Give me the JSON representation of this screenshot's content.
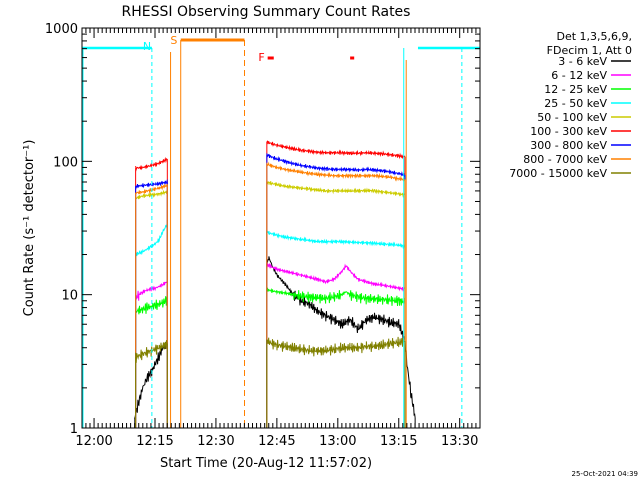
{
  "chart_data": {
    "type": "line",
    "title": "RHESSI Observing Summary Count Rates",
    "xlabel": "Start Time (20-Aug-12 11:57:02)",
    "ylabel": "Count Rate (s⁻¹ detector⁻¹)",
    "y_scale": "log",
    "ylim": [
      1,
      1000
    ],
    "xlim": [
      "11:57:02",
      "13:35"
    ],
    "x_ticks": [
      "12:00",
      "12:15",
      "12:30",
      "12:45",
      "13:00",
      "13:15",
      "13:30"
    ],
    "y_ticks": [
      "1",
      "10",
      "100",
      "1000"
    ],
    "legend_header": [
      "Det 1,3,5,6,9,",
      "FDecim 1, Att 0"
    ],
    "legend_position": "top-right",
    "footer_date": "25-Oct-2021 04:39",
    "flags": {
      "N": {
        "label": "N",
        "color": "#00ffff"
      },
      "S": {
        "label": "S",
        "color": "#ff8000"
      },
      "F": {
        "label": "F",
        "color": "#ff0000"
      }
    },
    "series": [
      {
        "name": "3 - 6 keV",
        "color": "#000000",
        "segments": [
          [
            [
              13.0,
              1.2
            ],
            [
              14,
              1.6
            ],
            [
              15,
              2.0
            ],
            [
              16,
              2.4
            ],
            [
              17,
              2.6
            ],
            [
              18,
              3.0
            ],
            [
              19,
              3.5
            ],
            [
              20,
              4.0
            ],
            [
              21,
              4.3
            ]
          ],
          [
            [
              45.5,
              17
            ],
            [
              46,
              19
            ],
            [
              47,
              16
            ],
            [
              48,
              14
            ],
            [
              50,
              12
            ],
            [
              52,
              10
            ],
            [
              54,
              9
            ],
            [
              56,
              8.5
            ],
            [
              58,
              7.5
            ],
            [
              60,
              7
            ],
            [
              62,
              6.5
            ],
            [
              64,
              6
            ],
            [
              66,
              6.5
            ],
            [
              68,
              5.5
            ],
            [
              70,
              6.5
            ],
            [
              72,
              6.8
            ],
            [
              74,
              6.5
            ],
            [
              76,
              6.2
            ],
            [
              78,
              6
            ],
            [
              79.5,
              4.5
            ],
            [
              80,
              3
            ],
            [
              81,
              1.8
            ],
            [
              82,
              1.2
            ]
          ]
        ]
      },
      {
        "name": "6 - 12 keV",
        "color": "#ff00ff",
        "segments": [
          [
            [
              13.2,
              9.5
            ],
            [
              14,
              10
            ],
            [
              15,
              10.5
            ],
            [
              16,
              10.8
            ],
            [
              17,
              11
            ],
            [
              18,
              11.2
            ],
            [
              19,
              11.5
            ],
            [
              20,
              12
            ],
            [
              21,
              12.5
            ]
          ],
          [
            [
              45.5,
              17
            ],
            [
              46,
              16.5
            ],
            [
              48,
              15.5
            ],
            [
              50,
              15
            ],
            [
              52,
              14.5
            ],
            [
              54,
              14
            ],
            [
              56,
              13.5
            ],
            [
              58,
              13
            ],
            [
              60,
              12.5
            ],
            [
              62,
              13
            ],
            [
              64,
              15
            ],
            [
              65,
              16.5
            ],
            [
              66,
              15
            ],
            [
              68,
              13
            ],
            [
              70,
              12.5
            ],
            [
              72,
              12
            ],
            [
              74,
              11.8
            ],
            [
              76,
              11.5
            ],
            [
              78,
              11.2
            ],
            [
              79.5,
              11
            ]
          ]
        ]
      },
      {
        "name": "12 - 25 keV",
        "color": "#00ff00",
        "segments": [
          [
            [
              13.2,
              7.5
            ],
            [
              14,
              7.6
            ],
            [
              15,
              7.8
            ],
            [
              16,
              8
            ],
            [
              17,
              8.2
            ],
            [
              18,
              8.3
            ],
            [
              19,
              8.5
            ],
            [
              20,
              8.8
            ],
            [
              21,
              9.2
            ]
          ],
          [
            [
              45.5,
              11
            ],
            [
              46,
              10.8
            ],
            [
              48,
              10.5
            ],
            [
              50,
              10.3
            ],
            [
              52,
              10
            ],
            [
              54,
              9.8
            ],
            [
              56,
              9.6
            ],
            [
              58,
              9.5
            ],
            [
              60,
              9.4
            ],
            [
              62,
              9.6
            ],
            [
              64,
              10
            ],
            [
              65,
              10.5
            ],
            [
              66,
              10
            ],
            [
              68,
              9.6
            ],
            [
              70,
              9.4
            ],
            [
              72,
              9.3
            ],
            [
              74,
              9.2
            ],
            [
              76,
              9.1
            ],
            [
              78,
              9
            ],
            [
              79.5,
              8.8
            ]
          ]
        ]
      },
      {
        "name": "25 - 50 keV",
        "color": "#00ffff",
        "segments": [
          [
            [
              13.2,
              20
            ],
            [
              14,
              20.5
            ],
            [
              15,
              21
            ],
            [
              16,
              22
            ],
            [
              17,
              23
            ],
            [
              18,
              24
            ],
            [
              19,
              26
            ],
            [
              20,
              30
            ],
            [
              21,
              34
            ]
          ],
          [
            [
              45.5,
              30
            ],
            [
              46,
              29
            ],
            [
              48,
              28
            ],
            [
              50,
              27
            ],
            [
              52,
              26.5
            ],
            [
              54,
              26
            ],
            [
              56,
              25.5
            ],
            [
              58,
              25
            ],
            [
              60,
              25
            ],
            [
              62,
              25
            ],
            [
              64,
              25
            ],
            [
              66,
              24.8
            ],
            [
              68,
              24.6
            ],
            [
              70,
              24.5
            ],
            [
              72,
              24.3
            ],
            [
              74,
              24
            ],
            [
              76,
              23.8
            ],
            [
              78,
              23.5
            ],
            [
              79.5,
              23
            ]
          ]
        ]
      },
      {
        "name": "50 - 100 keV",
        "color": "#cccc00",
        "segments": [
          [
            [
              13.2,
              53
            ],
            [
              15,
              55
            ],
            [
              17,
              56
            ],
            [
              19,
              57
            ],
            [
              21,
              59
            ]
          ],
          [
            [
              45.5,
              70
            ],
            [
              46,
              69
            ],
            [
              48,
              67
            ],
            [
              50,
              65
            ],
            [
              52,
              64
            ],
            [
              54,
              63
            ],
            [
              56,
              62
            ],
            [
              58,
              61
            ],
            [
              60,
              60
            ],
            [
              62,
              60
            ],
            [
              64,
              60
            ],
            [
              66,
              60
            ],
            [
              68,
              60
            ],
            [
              70,
              60.5
            ],
            [
              72,
              60
            ],
            [
              74,
              59
            ],
            [
              76,
              58
            ],
            [
              78,
              57
            ],
            [
              79.5,
              56
            ]
          ]
        ]
      },
      {
        "name": "100 - 300 keV",
        "color": "#ff0000",
        "segments": [
          [
            [
              13.2,
              89
            ],
            [
              15,
              90
            ],
            [
              17,
              93
            ],
            [
              19,
              97
            ],
            [
              21,
              104
            ]
          ],
          [
            [
              45.5,
              140
            ],
            [
              46,
              138
            ],
            [
              48,
              132
            ],
            [
              50,
              128
            ],
            [
              52,
              124
            ],
            [
              54,
              121
            ],
            [
              56,
              119
            ],
            [
              58,
              117
            ],
            [
              60,
              116
            ],
            [
              62,
              116
            ],
            [
              64,
              116
            ],
            [
              66,
              115
            ],
            [
              68,
              115
            ],
            [
              70,
              116
            ],
            [
              72,
              115
            ],
            [
              74,
              114
            ],
            [
              76,
              112
            ],
            [
              78,
              110
            ],
            [
              79.5,
              108
            ]
          ]
        ]
      },
      {
        "name": "300 - 800 keV",
        "color": "#0000ff",
        "segments": [
          [
            [
              13.2,
              65
            ],
            [
              15,
              66
            ],
            [
              17,
              67
            ],
            [
              19,
              68
            ],
            [
              21,
              70
            ]
          ],
          [
            [
              45.5,
              112
            ],
            [
              46,
              110
            ],
            [
              48,
              104
            ],
            [
              50,
              100
            ],
            [
              52,
              96
            ],
            [
              54,
              93
            ],
            [
              56,
              91
            ],
            [
              58,
              89
            ],
            [
              60,
              88
            ],
            [
              62,
              87
            ],
            [
              64,
              87
            ],
            [
              66,
              87
            ],
            [
              68,
              86
            ],
            [
              70,
              87
            ],
            [
              72,
              86
            ],
            [
              74,
              85
            ],
            [
              76,
              83
            ],
            [
              78,
              81
            ],
            [
              79.5,
              79
            ]
          ]
        ]
      },
      {
        "name": "800 - 7000 keV",
        "color": "#ff8000",
        "segments": [
          [
            [
              13.2,
              58
            ],
            [
              15,
              59
            ],
            [
              17,
              61
            ],
            [
              19,
              63
            ],
            [
              21,
              66
            ]
          ],
          [
            [
              45.5,
              95
            ],
            [
              46,
              94
            ],
            [
              48,
              90
            ],
            [
              50,
              87
            ],
            [
              52,
              85
            ],
            [
              54,
              83
            ],
            [
              56,
              81
            ],
            [
              58,
              80
            ],
            [
              60,
              79
            ],
            [
              62,
              78
            ],
            [
              64,
              78
            ],
            [
              66,
              78
            ],
            [
              68,
              78
            ],
            [
              70,
              78
            ],
            [
              72,
              78
            ],
            [
              74,
              77
            ],
            [
              76,
              76
            ],
            [
              78,
              74
            ],
            [
              79.5,
              73
            ]
          ]
        ]
      },
      {
        "name": "7000 - 15000 keV",
        "color": "#808000",
        "segments": [
          [
            [
              13.2,
              3.4
            ],
            [
              15,
              3.6
            ],
            [
              17,
              3.8
            ],
            [
              19,
              4.0
            ],
            [
              21,
              4.3
            ]
          ],
          [
            [
              45.5,
              4.6
            ],
            [
              46,
              4.4
            ],
            [
              48,
              4.2
            ],
            [
              50,
              4.1
            ],
            [
              52,
              4.0
            ],
            [
              54,
              3.9
            ],
            [
              56,
              3.8
            ],
            [
              58,
              3.8
            ],
            [
              60,
              3.8
            ],
            [
              62,
              3.9
            ],
            [
              64,
              4.0
            ],
            [
              66,
              4.0
            ],
            [
              68,
              4.0
            ],
            [
              70,
              4.1
            ],
            [
              72,
              4.1
            ],
            [
              74,
              4.2
            ],
            [
              76,
              4.3
            ],
            [
              78,
              4.4
            ],
            [
              79.5,
              4.5
            ]
          ]
        ]
      }
    ]
  }
}
